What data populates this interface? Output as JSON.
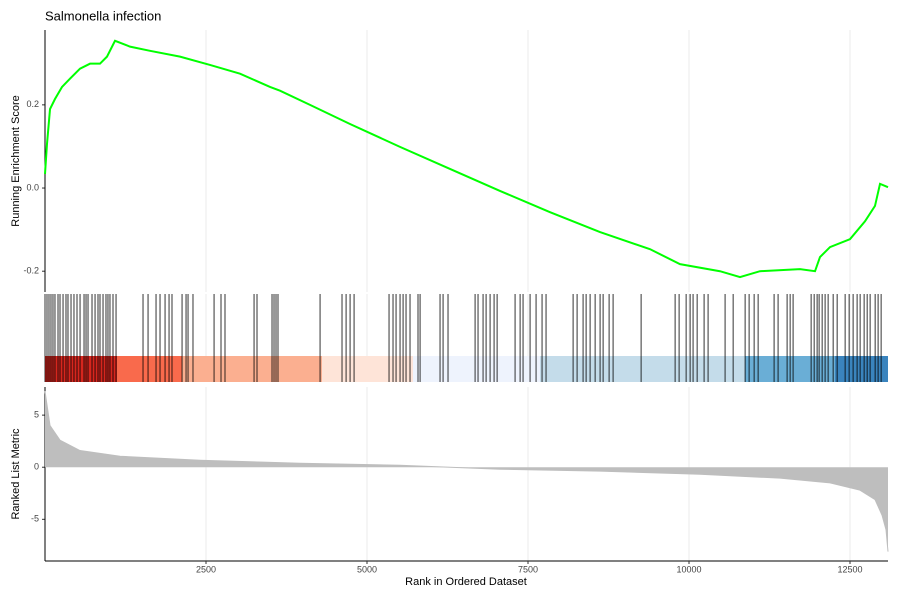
{
  "chart_data": [
    {
      "type": "line",
      "title": "Salmonella infection",
      "ylabel": "Running Enrichment Score",
      "color": "#00ff00",
      "x": [
        0,
        31,
        78,
        155,
        264,
        388,
        543,
        699,
        854,
        963,
        1087,
        1320,
        1630,
        2096,
        2562,
        3028,
        3494,
        3649,
        4115,
        4736,
        5512,
        6289,
        7065,
        7842,
        8618,
        9394,
        9860,
        10481,
        10792,
        11102,
        11724,
        11957,
        12034,
        12190,
        12500,
        12733,
        12888,
        12966,
        13090
      ],
      "values": [
        0.034,
        0.106,
        0.19,
        0.214,
        0.243,
        0.263,
        0.287,
        0.299,
        0.299,
        0.316,
        0.354,
        0.34,
        0.33,
        0.316,
        0.296,
        0.275,
        0.243,
        0.234,
        0.2,
        0.154,
        0.099,
        0.046,
        -0.007,
        -0.058,
        -0.106,
        -0.147,
        -0.183,
        -0.2,
        -0.214,
        -0.2,
        -0.195,
        -0.2,
        -0.166,
        -0.142,
        -0.123,
        -0.08,
        -0.043,
        0.01,
        0.002
      ],
      "xlim": [
        0,
        13090
      ],
      "ylim": [
        -0.25,
        0.38
      ],
      "yticks": [
        {
          "value": -0.2,
          "label": "-0.2"
        },
        {
          "value": 0,
          "label": "0.0"
        },
        {
          "value": 0.2,
          "label": "0.2"
        }
      ]
    },
    {
      "type": "rug",
      "color": "#000000",
      "xlim": [
        0,
        13090
      ],
      "x": [
        0,
        31,
        62,
        93,
        124,
        155,
        202,
        233,
        280,
        326,
        357,
        404,
        450,
        497,
        544,
        606,
        637,
        668,
        730,
        777,
        823,
        854,
        901,
        947,
        978,
        1009,
        1056,
        1103,
        1522,
        1600,
        1724,
        1786,
        1864,
        1926,
        1972,
        2128,
        2190,
        2221,
        2298,
        2625,
        2733,
        2795,
        3246,
        3292,
        3525,
        3556,
        3587,
        3618,
        4271,
        4612,
        4675,
        4737,
        4799,
        5342,
        5404,
        5451,
        5513,
        5560,
        5606,
        5668,
        5792,
        5824,
        6134,
        6181,
        6258,
        6678,
        6724,
        6802,
        6849,
        6911,
        6973,
        7020,
        7299,
        7377,
        7423,
        7532,
        7625,
        7718,
        7780,
        8200,
        8262,
        8355,
        8402,
        8464,
        8542,
        8619,
        8666,
        8759,
        8821,
        9256,
        9784,
        9846,
        9955,
        10017,
        10063,
        10126,
        10234,
        10296,
        10560,
        10685,
        10871,
        10933,
        11011,
        11073,
        11321,
        11383,
        11523,
        11570,
        11616,
        11896,
        11943,
        11989,
        12020,
        12067,
        12113,
        12160,
        12238,
        12300,
        12424,
        12486,
        12548,
        12610,
        12657,
        12719,
        12766,
        12812,
        12890,
        12936,
        12983
      ],
      "band_edges": [
        0,
        1118,
        2127,
        4301,
        5714,
        7686,
        10870,
        12267,
        13090
      ],
      "band_colors": [
        "#d7261e",
        "#f96a4c",
        "#fbaf90",
        "#fee4d8",
        "#eef3fd",
        "#c4dcea",
        "#6aaed6",
        "#3a84be"
      ]
    },
    {
      "type": "area",
      "ylabel": "Ranked List Metric",
      "xlabel": "Rank in Ordered Dataset",
      "color": "#bebebe",
      "x": [
        0,
        78,
        233,
        543,
        1165,
        2407,
        3960,
        5512,
        6289,
        7065,
        8618,
        10171,
        11413,
        12190,
        12655,
        12888,
        12997,
        13059,
        13090
      ],
      "values": [
        7.3,
        4.0,
        2.6,
        1.6,
        1.05,
        0.67,
        0.38,
        0.19,
        0,
        -0.19,
        -0.38,
        -0.67,
        -1.05,
        -1.5,
        -2.2,
        -3.1,
        -4.6,
        -6,
        -8.1
      ],
      "xlim": [
        0,
        13090
      ],
      "ylim": [
        -9,
        7.7
      ],
      "yticks": [
        -5,
        0,
        5
      ],
      "xticks": [
        2500,
        5000,
        7500,
        10000,
        12500
      ]
    }
  ]
}
